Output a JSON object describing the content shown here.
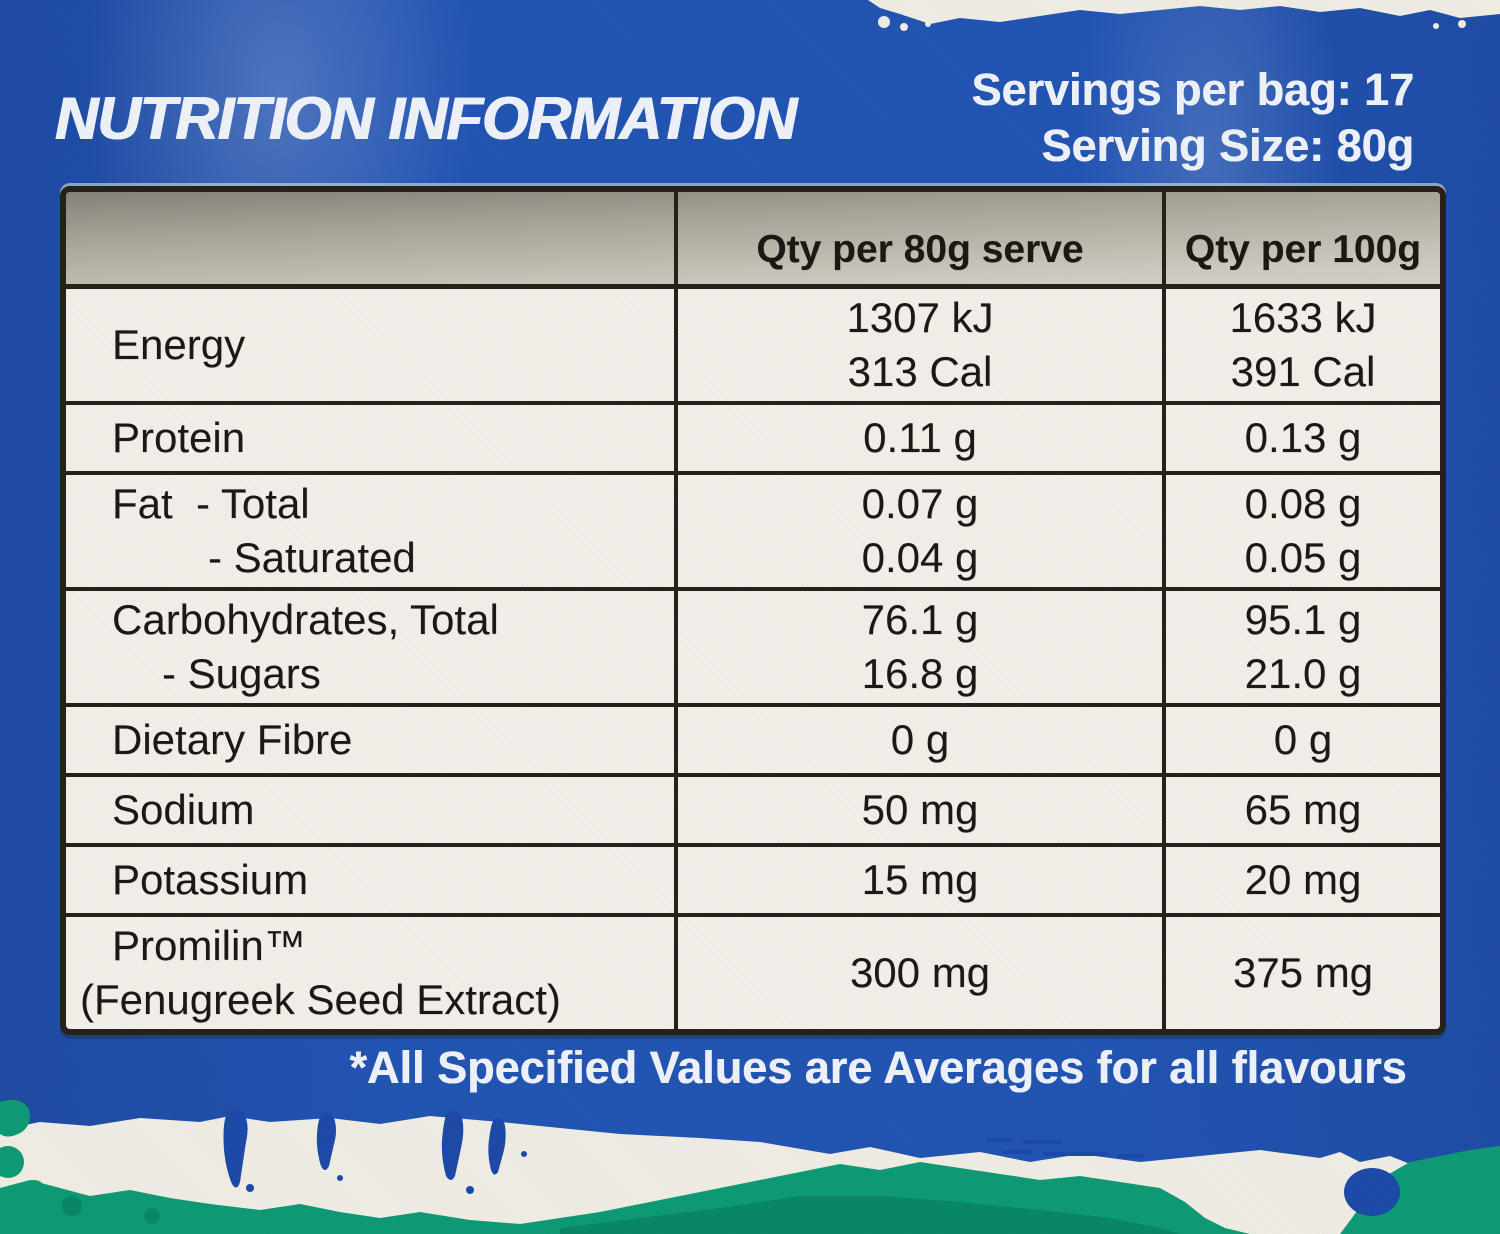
{
  "label": {
    "title": "NUTRITION INFORMATION",
    "servings_per_bag": "Servings per bag: 17",
    "serving_size": "Serving Size: 80g",
    "footnote": "*All Specified Values are Averages for all flavours"
  },
  "table": {
    "columns": [
      "",
      "Qty per 80g serve",
      "Qty per 100g"
    ],
    "rows": [
      {
        "label_lines": [
          {
            "text": "Energy",
            "indent": "none"
          }
        ],
        "per_serve": [
          "1307 kJ",
          "313 Cal"
        ],
        "per_100g": [
          "1633 kJ",
          "391 Cal"
        ]
      },
      {
        "label_lines": [
          {
            "text": "Protein",
            "indent": "none"
          }
        ],
        "per_serve": [
          "0.11 g"
        ],
        "per_100g": [
          "0.13 g"
        ]
      },
      {
        "label_lines": [
          {
            "text": "Fat  - Total",
            "indent": "none"
          },
          {
            "text": "- Saturated",
            "indent": "deep"
          }
        ],
        "per_serve": [
          "0.07 g",
          "0.04 g"
        ],
        "per_100g": [
          "0.08 g",
          "0.05 g"
        ]
      },
      {
        "label_lines": [
          {
            "text": "Carbohydrates, Total",
            "indent": "none"
          },
          {
            "text": "- Sugars",
            "indent": "sub"
          }
        ],
        "per_serve": [
          "76.1 g",
          "16.8 g"
        ],
        "per_100g": [
          "95.1 g",
          "21.0 g"
        ]
      },
      {
        "label_lines": [
          {
            "text": "Dietary Fibre",
            "indent": "none"
          }
        ],
        "per_serve": [
          "0 g"
        ],
        "per_100g": [
          "0 g"
        ]
      },
      {
        "label_lines": [
          {
            "text": "Sodium",
            "indent": "none"
          }
        ],
        "per_serve": [
          "50 mg"
        ],
        "per_100g": [
          "65 mg"
        ]
      },
      {
        "label_lines": [
          {
            "text": "Potassium",
            "indent": "none"
          }
        ],
        "per_serve": [
          "15 mg"
        ],
        "per_100g": [
          "20 mg"
        ]
      },
      {
        "label_lines": [
          {
            "text": "Promilin™",
            "indent": "none"
          },
          {
            "text": "(Fenugreek Seed Extract)",
            "indent": "hang"
          }
        ],
        "per_serve": [
          "300 mg"
        ],
        "per_100g": [
          "375 mg"
        ]
      }
    ]
  },
  "colors": {
    "blue": "#2254b2",
    "blue_deep": "#1d4aa8",
    "cell_white": "#f1efe8",
    "header_grey_top": "#86827a",
    "header_grey_bottom": "#ccc9c0",
    "border": "#272219",
    "teal": "#0d9a74",
    "teal_dark": "#0a8766",
    "paint_white": "#efede3",
    "text_white": "#eef2f8",
    "text_black": "#1c1914"
  }
}
